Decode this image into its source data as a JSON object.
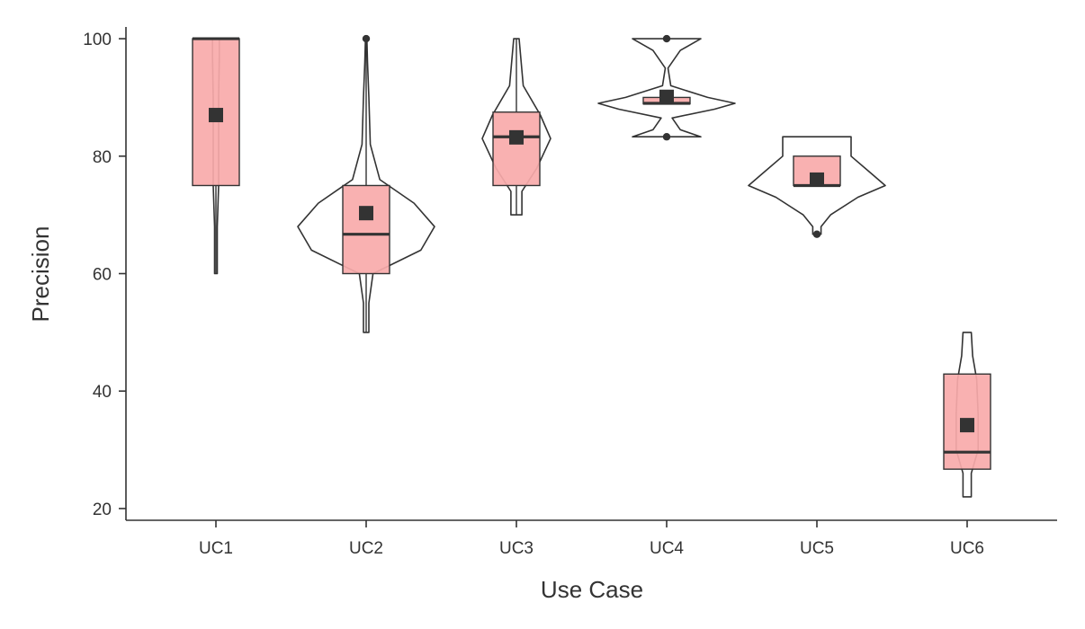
{
  "chart_data": {
    "type": "box",
    "xlabel": "Use Case",
    "ylabel": "Precision",
    "ylim": [
      18,
      102
    ],
    "yticks": [
      20,
      40,
      60,
      80,
      100
    ],
    "categories": [
      "UC1",
      "UC2",
      "UC3",
      "UC4",
      "UC5",
      "UC6"
    ],
    "box_color": "#f8aaaa",
    "line_color": "#333333",
    "groups": [
      {
        "label": "UC1",
        "min": 60,
        "q1": 75,
        "median": 100,
        "q3": 100,
        "max": 100,
        "mean": 87,
        "outliers": [],
        "density": [
          [
            60,
            0.02
          ],
          [
            68,
            0.02
          ],
          [
            75,
            0.04
          ],
          [
            80,
            0.04
          ],
          [
            90,
            0.04
          ],
          [
            97,
            0.05
          ],
          [
            100,
            0.05
          ]
        ]
      },
      {
        "label": "UC2",
        "min": 50,
        "q1": 60,
        "median": 66.7,
        "q3": 75,
        "max": 100,
        "mean": 70.3,
        "outliers": [
          100
        ],
        "density": [
          [
            50,
            0.04
          ],
          [
            55,
            0.04
          ],
          [
            60,
            0.1
          ],
          [
            64,
            0.8
          ],
          [
            68,
            1.0
          ],
          [
            72,
            0.7
          ],
          [
            76,
            0.2
          ],
          [
            82,
            0.06
          ],
          [
            90,
            0.04
          ],
          [
            96,
            0.02
          ],
          [
            100,
            0.01
          ]
        ]
      },
      {
        "label": "UC3",
        "min": 70,
        "q1": 75,
        "median": 83.3,
        "q3": 87.5,
        "max": 100,
        "mean": 83.2,
        "outliers": [],
        "density": [
          [
            70,
            0.08
          ],
          [
            74,
            0.08
          ],
          [
            78,
            0.3
          ],
          [
            83,
            0.5
          ],
          [
            87,
            0.35
          ],
          [
            92,
            0.1
          ],
          [
            100,
            0.04
          ]
        ]
      },
      {
        "label": "UC4",
        "min": 88.9,
        "q1": 88.9,
        "median": 89,
        "q3": 90,
        "max": 90.9,
        "mean": 90.1,
        "outliers": [
          83.3,
          100
        ],
        "density": [
          [
            83.3,
            0.5
          ],
          [
            84.5,
            0.2
          ],
          [
            86.5,
            0.08
          ],
          [
            88,
            0.7
          ],
          [
            89,
            1.0
          ],
          [
            90,
            0.6
          ],
          [
            92,
            0.06
          ],
          [
            95,
            0.02
          ],
          [
            98,
            0.2
          ],
          [
            100,
            0.5
          ]
        ]
      },
      {
        "label": "UC5",
        "min": 75,
        "q1": 75,
        "median": 75,
        "q3": 80,
        "max": 80,
        "mean": 76,
        "outliers": [
          66.7
        ],
        "density": [
          [
            66.7,
            0.06
          ],
          [
            68,
            0.06
          ],
          [
            70,
            0.2
          ],
          [
            73,
            0.6
          ],
          [
            75,
            1.0
          ],
          [
            77,
            0.8
          ],
          [
            80,
            0.5
          ],
          [
            83.3,
            0.5
          ]
        ]
      },
      {
        "label": "UC6",
        "min": 26.7,
        "q1": 26.7,
        "median": 29.6,
        "q3": 42.9,
        "max": 42.9,
        "mean": 34.2,
        "outliers": [],
        "density": [
          [
            22,
            0.06
          ],
          [
            26,
            0.06
          ],
          [
            30,
            0.16
          ],
          [
            36,
            0.16
          ],
          [
            42,
            0.14
          ],
          [
            46,
            0.08
          ],
          [
            50,
            0.06
          ]
        ]
      }
    ]
  }
}
